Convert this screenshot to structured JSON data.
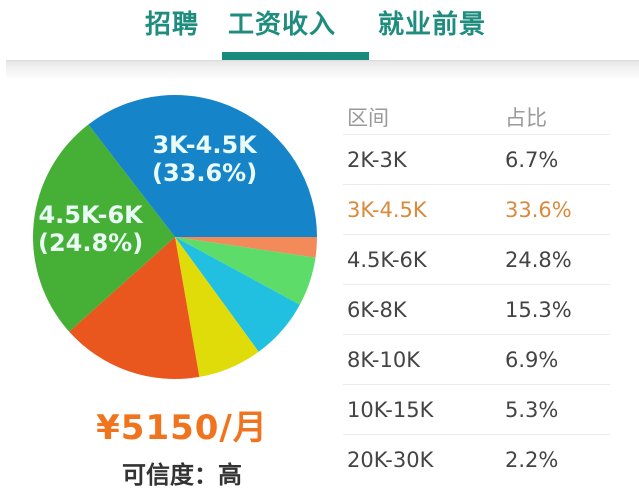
{
  "tabs": [
    {
      "label": "招聘",
      "active": false
    },
    {
      "label": "工资收入",
      "active": true
    },
    {
      "label": "就业前景",
      "active": false
    }
  ],
  "summary": {
    "average_salary": "¥5150/月",
    "credibility": "可信度：高"
  },
  "pie_labels": {
    "blue_range": "3K-4.5K",
    "blue_pct": "(33.6%)",
    "green_range": "4.5K-6K",
    "green_pct": "(24.8%)"
  },
  "table": {
    "headers": [
      "区间",
      "占比"
    ],
    "rows": [
      {
        "range": "2K-3K",
        "pct": "6.7%"
      },
      {
        "range": "3K-4.5K",
        "pct": "33.6%",
        "highlight": true
      },
      {
        "range": "4.5K-6K",
        "pct": "24.8%"
      },
      {
        "range": "6K-8K",
        "pct": "15.3%"
      },
      {
        "range": "8K-10K",
        "pct": "6.9%"
      },
      {
        "range": "10K-15K",
        "pct": "5.3%"
      },
      {
        "range": "20K-30K",
        "pct": "2.2%"
      }
    ]
  },
  "colors": {
    "accent": "#1a8a7c",
    "highlight_text": "#d98a3c",
    "salary_text": "#f0731e"
  },
  "chart_data": {
    "type": "pie",
    "title": "工资收入",
    "categories": [
      "2K-3K",
      "3K-4.5K",
      "4.5K-6K",
      "6K-8K",
      "8K-10K",
      "10K-15K",
      "20K-30K"
    ],
    "values": [
      6.7,
      33.6,
      24.8,
      15.3,
      6.9,
      5.3,
      2.2
    ],
    "unit": "%",
    "slice_colors": {
      "2K-3K": "#22c0e0",
      "3K-4.5K": "#1684c8",
      "4.5K-6K": "#45b035",
      "6K-8K": "#ea571e",
      "8K-10K": "#e0dc0a",
      "10K-15K": "#5ddc6a",
      "20K-30K": "#f28a5a"
    },
    "annotations": [
      "3K-4.5K (33.6%)",
      "4.5K-6K (24.8%)"
    ],
    "summary": "¥5150/月",
    "legend_position": "right (table)"
  }
}
